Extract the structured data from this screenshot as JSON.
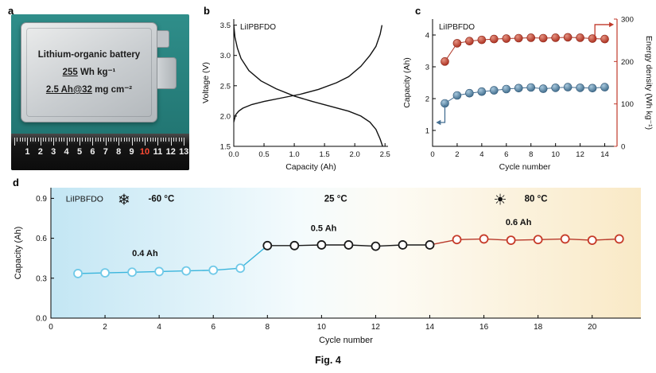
{
  "figure": {
    "caption": "Fig. 4"
  },
  "panels": {
    "a": "a",
    "b": "b",
    "c": "c",
    "d": "d"
  },
  "panel_a": {
    "line1": "Lithium-organic battery",
    "line2_u": "255",
    "line2_rest": " Wh kg⁻¹",
    "line3_u": "2.5 Ah@32",
    "line3_rest": " mg cm⁻²",
    "ruler_numbers": [
      "1",
      "2",
      "3",
      "4",
      "5",
      "6",
      "7",
      "8",
      "9",
      "10",
      "11",
      "12",
      "13"
    ],
    "ruler_highlight": "10"
  },
  "chart_data": [
    {
      "id": "b",
      "type": "line",
      "annotation": "LiIPBFDO",
      "xlabel": "Capacity (Ah)",
      "ylabel": "Voltage (V)",
      "xlim": [
        0,
        2.55
      ],
      "ylim": [
        1.5,
        3.6
      ],
      "xticks": [
        0.0,
        0.5,
        1.0,
        1.5,
        2.0,
        2.5
      ],
      "xtick_labels": [
        "0.0",
        "0.5",
        "1.0",
        "1.5",
        "2.0",
        "2.5"
      ],
      "yticks": [
        1.5,
        2.0,
        2.5,
        3.0,
        3.5
      ],
      "ytick_labels": [
        "1.5",
        "2.0",
        "2.5",
        "3.0",
        "3.5"
      ],
      "series": [
        {
          "name": "discharge",
          "color": "#111111",
          "x": [
            0,
            0.02,
            0.06,
            0.12,
            0.25,
            0.45,
            0.7,
            1.0,
            1.3,
            1.6,
            1.9,
            2.1,
            2.25,
            2.35,
            2.42,
            2.46
          ],
          "y": [
            3.5,
            3.3,
            3.12,
            2.95,
            2.75,
            2.58,
            2.45,
            2.33,
            2.24,
            2.16,
            2.08,
            2.0,
            1.9,
            1.78,
            1.62,
            1.5
          ]
        },
        {
          "name": "charge",
          "color": "#111111",
          "x": [
            0,
            0.03,
            0.08,
            0.15,
            0.3,
            0.5,
            0.8,
            1.1,
            1.4,
            1.7,
            1.9,
            2.1,
            2.25,
            2.35,
            2.42,
            2.45
          ],
          "y": [
            1.9,
            2.02,
            2.08,
            2.13,
            2.19,
            2.24,
            2.3,
            2.36,
            2.44,
            2.55,
            2.65,
            2.82,
            3.0,
            3.15,
            3.35,
            3.5
          ]
        }
      ]
    },
    {
      "id": "c",
      "type": "scatter",
      "annotation": "LiIPBFDO",
      "xlabel": "Cycle number",
      "ylabel_left": "Capacity (Ah)",
      "ylabel_right": "Energy density (Wh kg⁻¹)",
      "left_color": "#111111",
      "right_color": "#c0392b",
      "xlim": [
        0,
        15
      ],
      "xticks": [
        0,
        2,
        4,
        6,
        8,
        10,
        12,
        14
      ],
      "xtick_labels": [
        "0",
        "2",
        "4",
        "6",
        "8",
        "10",
        "12",
        "14"
      ],
      "ylim_left": [
        0.5,
        4.5
      ],
      "yticks_left": [
        1,
        2,
        3,
        4
      ],
      "ytick_labels_left": [
        "1",
        "2",
        "3",
        "4"
      ],
      "ylim_right": [
        0,
        300
      ],
      "yticks_right": [
        0,
        100,
        200,
        300
      ],
      "ytick_labels_right": [
        "0",
        "100",
        "200",
        "300"
      ],
      "cycles": [
        1,
        2,
        3,
        4,
        5,
        6,
        7,
        8,
        9,
        10,
        11,
        12,
        13,
        14
      ],
      "capacity_ah": [
        1.85,
        2.1,
        2.17,
        2.22,
        2.26,
        2.3,
        2.33,
        2.35,
        2.31,
        2.34,
        2.36,
        2.34,
        2.33,
        2.36
      ],
      "energy_density_wh_kg": [
        200,
        243,
        248,
        251,
        253,
        254,
        255,
        256,
        255,
        256,
        257,
        256,
        254,
        253
      ]
    },
    {
      "id": "d",
      "type": "line-scatter",
      "annotation": "LiIPBFDO",
      "xlabel": "Cycle number",
      "ylabel": "Capacity (Ah)",
      "xlim": [
        0,
        21.8
      ],
      "xticks": [
        0,
        2,
        4,
        6,
        8,
        10,
        12,
        14,
        16,
        18,
        20
      ],
      "xtick_labels": [
        "0",
        "2",
        "4",
        "6",
        "8",
        "10",
        "12",
        "14",
        "16",
        "18",
        "20"
      ],
      "ylim": [
        0,
        0.98
      ],
      "yticks": [
        0.0,
        0.3,
        0.6,
        0.9
      ],
      "ytick_labels": [
        "0.0",
        "0.3",
        "0.6",
        "0.9"
      ],
      "bg_gradient": [
        "#c3e6f4",
        "#f4fbfd",
        "#fdfbf4",
        "#f9e9c6"
      ],
      "segments": [
        {
          "name": "minus-60C",
          "temp_label": "-60 °C",
          "icon": "snowflake-icon",
          "icon_char": "❄",
          "icon_color": "#49c4e8",
          "temp_color": "#21b6e0",
          "marker_color": "#6fc9e8",
          "line_color": "#3ab5dc",
          "capacity_label": "0.4 Ah",
          "label_color": "#2ab3da",
          "cycles": [
            1,
            2,
            3,
            4,
            5,
            6,
            7
          ],
          "capacity_ah": [
            0.335,
            0.34,
            0.345,
            0.35,
            0.355,
            0.36,
            0.375
          ]
        },
        {
          "name": "25C",
          "temp_label": "25 °C",
          "temp_color": "#111111",
          "marker_color": "#1a1a1a",
          "line_color": "#1a1a1a",
          "capacity_label": "0.5 Ah",
          "label_color": "#111111",
          "cycles": [
            8,
            9,
            10,
            11,
            12,
            13,
            14
          ],
          "capacity_ah": [
            0.545,
            0.545,
            0.55,
            0.55,
            0.54,
            0.55,
            0.55
          ]
        },
        {
          "name": "80C",
          "temp_label": "80 °C",
          "icon": "sun-icon",
          "icon_char": "☀",
          "icon_color": "#f6a61a",
          "temp_color": "#ea2210",
          "marker_color": "#c63a28",
          "line_color": "#b8392a",
          "capacity_label": "0.6 Ah",
          "label_color": "#d3301c",
          "cycles": [
            15,
            16,
            17,
            18,
            19,
            20,
            21
          ],
          "capacity_ah": [
            0.59,
            0.595,
            0.585,
            0.59,
            0.595,
            0.585,
            0.595
          ]
        }
      ]
    }
  ]
}
